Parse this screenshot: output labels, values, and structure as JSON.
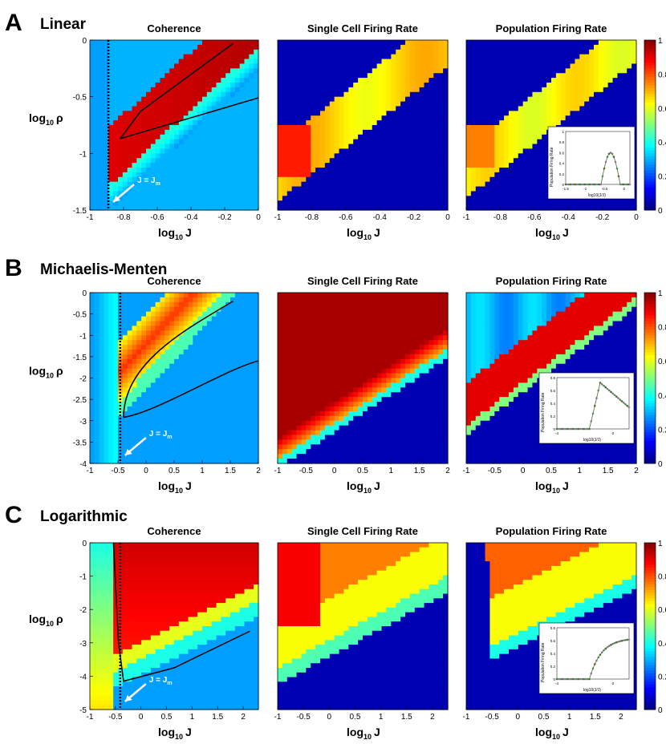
{
  "colors": {
    "jet_low": "#00008f",
    "jet_high": "#800000",
    "contour": "#000000",
    "arrow": "#ffffff"
  },
  "colorbar_ticks": [
    "0",
    "0.2",
    "0.4",
    "0.6",
    "0.8",
    "1"
  ],
  "panels": [
    {
      "letter": "A",
      "name": "Linear",
      "titles": [
        "Coherence",
        "Single Cell Firing Rate",
        "Population Firing Rate"
      ],
      "ylabel_main": "log",
      "ylabel_sub": "10",
      "ylabel_sym": "ρ",
      "xlabel_main": "log",
      "xlabel_sub": "10",
      "xlabel_var": "J",
      "xticks": [
        "-1",
        "-0.8",
        "-0.6",
        "-0.4",
        "-0.2",
        "0"
      ],
      "yticks": [
        "0",
        "-0.5",
        "-1",
        "-1.5"
      ],
      "arrow_label": "J = J",
      "arrow_sub": "m",
      "inset": {
        "ylabel": "Population Firing Rate",
        "xlabel": "log10(J/J)",
        "yticks": [
          "0",
          "0.2",
          "0.4",
          "0.6",
          "0.8",
          "1"
        ],
        "xticks": [
          "-1.5",
          "-1",
          "-0.5",
          "0"
        ]
      }
    },
    {
      "letter": "B",
      "name": "Michaelis-Menten",
      "titles": [
        "Coherence",
        "Single Cell Firing Rate",
        "Population Firing Rate"
      ],
      "ylabel_main": "log",
      "ylabel_sub": "10",
      "ylabel_sym": "ρ",
      "xlabel_main": "log",
      "xlabel_sub": "10",
      "xlabel_var": "J",
      "xticks": [
        "-1",
        "-0.5",
        "0",
        "0.5",
        "1",
        "1.5",
        "2"
      ],
      "yticks": [
        "0",
        "-0.5",
        "-1",
        "-1.5",
        "-2",
        "-2.5",
        "-3",
        "-3.5",
        "-4"
      ],
      "arrow_label": "J = J",
      "arrow_sub": "m",
      "inset": {
        "ylabel": "Population Firing Rate",
        "xlabel": "log10(J/J)",
        "yticks": [
          "0",
          "0.2",
          "0.4",
          "0.6",
          "0.8"
        ],
        "xticks": [
          "-4",
          "-2"
        ]
      }
    },
    {
      "letter": "C",
      "name": "Logarithmic",
      "titles": [
        "Coherence",
        "Single Cell Firing Rate",
        "Population Firing Rate"
      ],
      "ylabel_main": "log",
      "ylabel_sub": "10",
      "ylabel_sym": "ρ",
      "xlabel_main": "log",
      "xlabel_sub": "10",
      "xlabel_var": "J",
      "xticks": [
        "-1",
        "-0.5",
        "0",
        "0.5",
        "1",
        "1.5",
        "2"
      ],
      "yticks": [
        "0",
        "-1",
        "-2",
        "-3",
        "-4",
        "-5"
      ],
      "arrow_label": "J = J",
      "arrow_sub": "m",
      "inset": {
        "ylabel": "Population Firing Rate",
        "xlabel": "log10(J/J)",
        "yticks": [
          "0",
          "0.2",
          "0.4",
          "0.6",
          "0.8"
        ],
        "xticks": [
          "-4",
          "-2"
        ]
      }
    }
  ],
  "chart_data": [
    {
      "type": "heatmap",
      "title": "Coherence",
      "panel": "A",
      "xlabel": "log10 J",
      "ylabel": "log10 ρ",
      "xlim": [
        -1,
        0
      ],
      "ylim": [
        -1.5,
        0
      ],
      "colorbar": [
        0,
        1
      ],
      "marker": "J = Jm at log10 J ≈ -0.9"
    },
    {
      "type": "heatmap",
      "title": "Single Cell Firing Rate",
      "panel": "A",
      "xlabel": "log10 J",
      "xlim": [
        -1,
        0
      ],
      "ylim": [
        -1.5,
        0
      ],
      "colorbar": [
        0,
        1
      ]
    },
    {
      "type": "heatmap",
      "title": "Population Firing Rate",
      "panel": "A",
      "xlabel": "log10 J",
      "xlim": [
        -1,
        0
      ],
      "ylim": [
        -1.5,
        0
      ],
      "colorbar": [
        0,
        1
      ]
    },
    {
      "type": "heatmap",
      "title": "Coherence",
      "panel": "B",
      "xlabel": "log10 J",
      "ylabel": "log10 ρ",
      "xlim": [
        -1,
        2
      ],
      "ylim": [
        -4,
        0
      ],
      "colorbar": [
        0,
        1
      ],
      "marker": "J = Jm at log10 J ≈ -0.5"
    },
    {
      "type": "heatmap",
      "title": "Single Cell Firing Rate",
      "panel": "B",
      "xlabel": "log10 J",
      "xlim": [
        -1,
        2
      ],
      "ylim": [
        -4,
        0
      ],
      "colorbar": [
        0,
        1
      ]
    },
    {
      "type": "heatmap",
      "title": "Population Firing Rate",
      "panel": "B",
      "xlabel": "log10 J",
      "xlim": [
        -1,
        2
      ],
      "ylim": [
        -4,
        0
      ],
      "colorbar": [
        0,
        1
      ]
    },
    {
      "type": "heatmap",
      "title": "Coherence",
      "panel": "C",
      "xlabel": "log10 J",
      "ylabel": "log10 ρ",
      "xlim": [
        -1,
        2.3
      ],
      "ylim": [
        -5,
        0
      ],
      "colorbar": [
        0,
        1
      ],
      "marker": "J = Jm at log10 J ≈ -0.5"
    },
    {
      "type": "heatmap",
      "title": "Single Cell Firing Rate",
      "panel": "C",
      "xlabel": "log10 J",
      "xlim": [
        -1,
        2.3
      ],
      "ylim": [
        -5,
        0
      ],
      "colorbar": [
        0,
        1
      ]
    },
    {
      "type": "heatmap",
      "title": "Population Firing Rate",
      "panel": "C",
      "xlabel": "log10 J",
      "xlim": [
        -1,
        2.3
      ],
      "ylim": [
        -5,
        0
      ],
      "colorbar": [
        0,
        1
      ]
    }
  ]
}
